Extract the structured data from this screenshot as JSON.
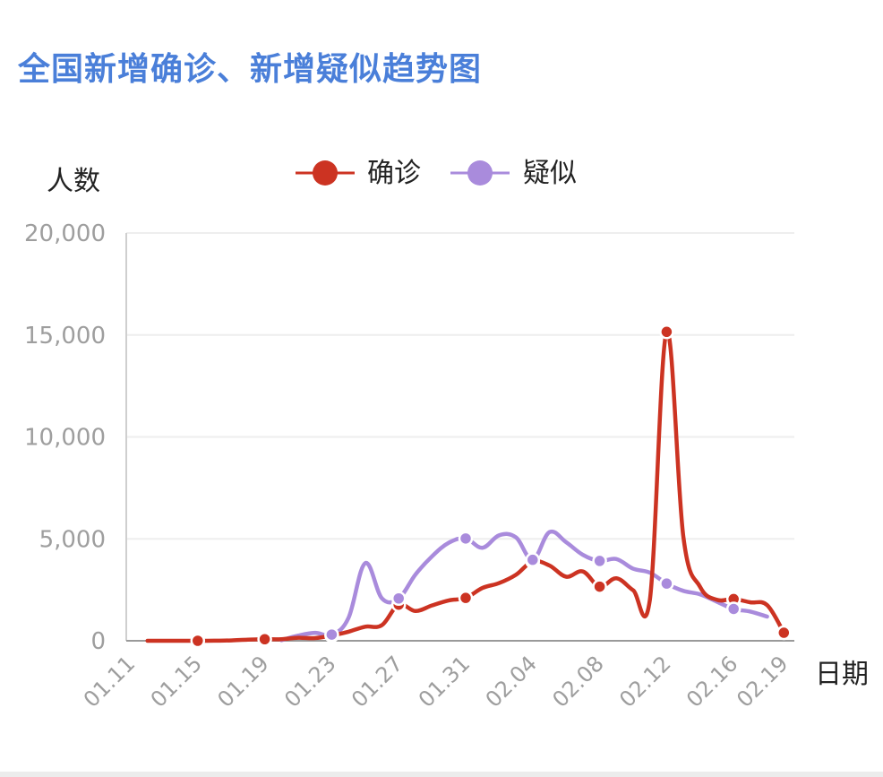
{
  "title": "全国新增确诊、新增疑似趋势图",
  "colors": {
    "confirmed": "#cc3322",
    "suspected": "#a98bdc",
    "title": "#4a7fd9",
    "tick": "#9e9e9e",
    "grid": "#eeeeee"
  },
  "chart_data": {
    "type": "line",
    "ylabel": "人数",
    "xlabel": "日期",
    "ylim": [
      0,
      20000
    ],
    "yticks": [
      0,
      5000,
      10000,
      15000,
      20000
    ],
    "ytick_labels": [
      "0",
      "5,000",
      "10,000",
      "15,000",
      "20,000"
    ],
    "x_range": [
      "01.11",
      "02.19"
    ],
    "xtick_labels": [
      "01.11",
      "01.15",
      "01.19",
      "01.23",
      "01.27",
      "01.31",
      "02.04",
      "02.08",
      "02.12",
      "02.16",
      "02.19"
    ],
    "legend_position": "top",
    "series": [
      {
        "name": "确诊",
        "color": "#cc3322",
        "markers": [
          "01.15",
          "01.19",
          "01.23",
          "01.27",
          "01.31",
          "02.04",
          "02.08",
          "02.12",
          "02.16",
          "02.19"
        ],
        "points": [
          [
            "01.12",
            0
          ],
          [
            "01.13",
            0
          ],
          [
            "01.14",
            0
          ],
          [
            "01.15",
            0
          ],
          [
            "01.16",
            4
          ],
          [
            "01.17",
            17
          ],
          [
            "01.18",
            59
          ],
          [
            "01.19",
            77
          ],
          [
            "01.20",
            77
          ],
          [
            "01.21",
            149
          ],
          [
            "01.22",
            131
          ],
          [
            "01.23",
            259
          ],
          [
            "01.24",
            444
          ],
          [
            "01.25",
            688
          ],
          [
            "01.26",
            769
          ],
          [
            "01.27",
            1771
          ],
          [
            "01.28",
            1459
          ],
          [
            "01.29",
            1737
          ],
          [
            "01.30",
            1982
          ],
          [
            "01.31",
            2102
          ],
          [
            "02.01",
            2590
          ],
          [
            "02.02",
            2829
          ],
          [
            "02.03",
            3235
          ],
          [
            "02.04",
            3887
          ],
          [
            "02.05",
            3694
          ],
          [
            "02.06",
            3143
          ],
          [
            "02.07",
            3399
          ],
          [
            "02.08",
            2656
          ],
          [
            "02.09",
            3062
          ],
          [
            "02.10",
            2478
          ],
          [
            "02.11",
            2015
          ],
          [
            "02.12",
            15152
          ],
          [
            "02.13",
            5090
          ],
          [
            "02.14",
            2641
          ],
          [
            "02.15",
            2009
          ],
          [
            "02.16",
            2048
          ],
          [
            "02.17",
            1886
          ],
          [
            "02.18",
            1749
          ],
          [
            "02.19",
            394
          ]
        ]
      },
      {
        "name": "疑似",
        "color": "#a98bdc",
        "markers": [
          "01.23",
          "01.27",
          "01.31",
          "02.04",
          "02.08",
          "02.12",
          "02.16"
        ],
        "points": [
          [
            "01.20",
            27
          ],
          [
            "01.21",
            257
          ],
          [
            "01.22",
            392
          ],
          [
            "01.23",
            303
          ],
          [
            "01.24",
            1118
          ],
          [
            "01.25",
            3806
          ],
          [
            "01.26",
            2077
          ],
          [
            "01.27",
            2077
          ],
          [
            "01.28",
            3248
          ],
          [
            "01.29",
            4148
          ],
          [
            "01.30",
            4812
          ],
          [
            "01.31",
            5019
          ],
          [
            "02.01",
            4562
          ],
          [
            "02.02",
            5173
          ],
          [
            "02.03",
            5072
          ],
          [
            "02.04",
            3971
          ],
          [
            "02.05",
            5328
          ],
          [
            "02.06",
            4833
          ],
          [
            "02.07",
            4214
          ],
          [
            "02.08",
            3916
          ],
          [
            "02.09",
            4008
          ],
          [
            "02.10",
            3536
          ],
          [
            "02.11",
            3342
          ],
          [
            "02.12",
            2807
          ],
          [
            "02.13",
            2450
          ],
          [
            "02.14",
            2277
          ],
          [
            "02.15",
            1918
          ],
          [
            "02.16",
            1563
          ],
          [
            "02.17",
            1432
          ],
          [
            "02.18",
            1185
          ]
        ]
      }
    ]
  }
}
